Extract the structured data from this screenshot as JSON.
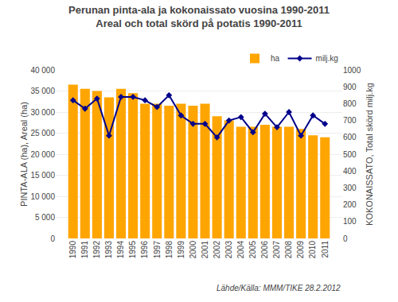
{
  "chart_data": {
    "type": "bar",
    "title": "Perunan pinta-ala ja kokonaissato vuosina 1990-2011",
    "subtitle": "Areal och total skörd på potatis 1990-2011",
    "y_label": "PINTA-ALA (ha), Areal (ha)",
    "y2_label": "KOKONAISSATO, Total skörd milj.kg",
    "categories": [
      "1990",
      "1991",
      "1992",
      "1993",
      "1994",
      "1995",
      "1996",
      "1997",
      "1998",
      "1999",
      "2000",
      "2001",
      "2002",
      "2003",
      "2004",
      "2005",
      "2006",
      "2007",
      "2008",
      "2009",
      "2010",
      "2011"
    ],
    "series": [
      {
        "name": "ha",
        "type": "bar",
        "color": "#FFA500",
        "values": [
          36500,
          35500,
          35000,
          33500,
          35500,
          34500,
          32000,
          32000,
          31500,
          32000,
          31500,
          32000,
          29000,
          28000,
          26500,
          26500,
          27000,
          26500,
          26500,
          26000,
          24500,
          24000
        ]
      },
      {
        "name": "milj.kg",
        "type": "line",
        "axis": "y2",
        "color": "#00008B",
        "marker": "diamond",
        "values": [
          820,
          770,
          830,
          610,
          840,
          840,
          820,
          780,
          850,
          730,
          680,
          680,
          600,
          700,
          720,
          630,
          740,
          660,
          750,
          610,
          730,
          680
        ]
      }
    ],
    "ylim": [
      0,
      40000
    ],
    "yticks": [
      0,
      {
        "value": 5000,
        "label": "5 000"
      },
      {
        "value": 10000,
        "label": "10 000"
      },
      {
        "value": 15000,
        "label": "15 000"
      },
      {
        "value": 20000,
        "label": "20 000"
      },
      {
        "value": 25000,
        "label": "25 000"
      },
      {
        "value": 30000,
        "label": "30 000"
      },
      {
        "value": 35000,
        "label": "35 000"
      },
      {
        "value": 40000,
        "label": "40 000"
      }
    ],
    "y2lim": [
      0,
      1000
    ],
    "y2ticks": [
      0,
      100,
      200,
      300,
      400,
      500,
      600,
      700,
      800,
      900,
      1000
    ],
    "annotations": [
      "Lähde/Källa: MMM/TIKE 28.2.2012"
    ],
    "legend": "upper right",
    "grid": true
  }
}
